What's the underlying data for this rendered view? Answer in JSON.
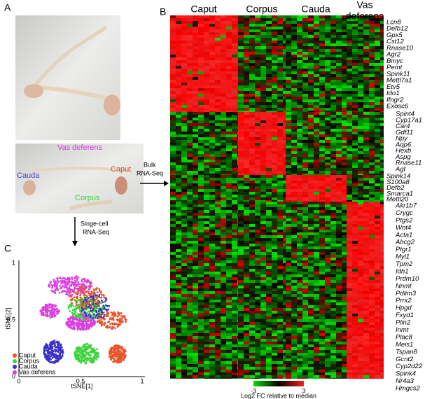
{
  "panels": {
    "a": "A",
    "b": "B",
    "c": "C"
  },
  "photo_labels": {
    "vas_deferens": "Vas deferens",
    "cauda": "Cauda",
    "caput": "Caput",
    "corpus": "Corpus"
  },
  "arrows": {
    "bulk": [
      "Bulk",
      "RNA-Seq"
    ],
    "single_cell": [
      "Singe-cell",
      "RNA-Seq"
    ]
  },
  "heatmap": {
    "columns": [
      "Caput",
      "Corpus",
      "Cauda",
      [
        "Vas",
        "deferens"
      ]
    ],
    "gene_groups": [
      [
        "Lcn8",
        "Defb12",
        "Gpx5",
        "Cst12",
        "Rnase10",
        "Agr2",
        "Bmyc",
        "Pemt",
        "Spink11",
        "Mettl7a1",
        "Etv5",
        "Ido1",
        "Ifngr2",
        "Exosc6"
      ],
      [
        "Spint4",
        "Cyp17a1",
        "Car4",
        "Gdf11",
        "Npy",
        "Aqp6",
        "Hexb",
        "Aspg",
        "Rnase11",
        "Agt"
      ],
      [
        "Spink14",
        "S100a8",
        "Defb2",
        "Smarca1",
        "Mettl20"
      ],
      [
        "Akr1b7",
        "Crygc",
        "Ptgs2",
        "Wnt4",
        "Acta1",
        "Abcg2",
        "Ptgr1",
        "Myl1",
        "Tpm2",
        "Idh1",
        "Prdm10",
        "Nnmt",
        "Pdlim3",
        "Prrx2",
        "Hpgd",
        "Fxyd1",
        "Plin2",
        "Inmt",
        "Plac8",
        "Meis1",
        "Tspan8",
        "Gcnt2",
        "Cyp2d22",
        "Spink4",
        "Nr4a3",
        "Hmgcs2"
      ]
    ],
    "colorbar": {
      "min_label": "-3",
      "max_label": "3",
      "title": "Log2 FC relative to median"
    }
  },
  "tsne": {
    "ylabel": "tSNE[2]",
    "xlabel": "tSNE[1]",
    "yticks": [
      "1",
      "0.5",
      "0"
    ],
    "xticks": [
      "0",
      "0.5",
      "1"
    ],
    "legend": [
      {
        "name": "Caput",
        "color": "#e8542c"
      },
      {
        "name": "Corpus",
        "color": "#3fd43f"
      },
      {
        "name": "Cauda",
        "color": "#3b2fc8"
      },
      {
        "name": "Vas deferens",
        "color": "#d93fe0"
      }
    ]
  }
}
